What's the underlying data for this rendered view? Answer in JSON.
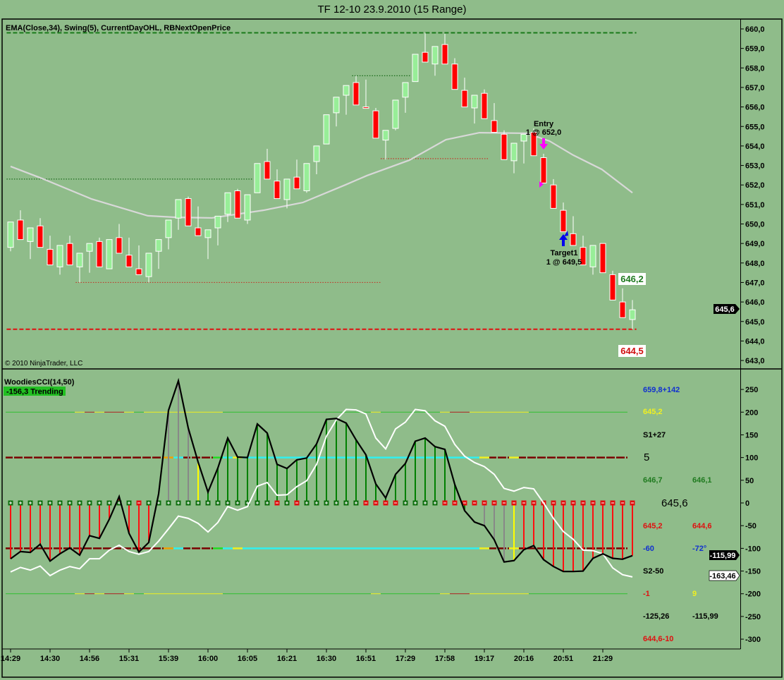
{
  "window": {
    "title": "TF 12-10  23.9.2010 (15 Range)"
  },
  "colors": {
    "background": "#8fbc8a",
    "up": "#98ee98",
    "down": "#ff0000",
    "ema": "#d8d8d8",
    "cci": "#000000",
    "tcci": "#ffffff"
  },
  "price_panel": {
    "indicator_label": "EMA(Close,34), Swing(5), CurrentDayOHL, RBNextOpenPrice",
    "copyright": "© 2010 NinjaTrader, LLC",
    "last_price_marker": "645,6",
    "next_open_up_label": "646,2",
    "next_open_down_label": "644,5",
    "entry": {
      "title": "Entry",
      "detail": "1 @ 652,0",
      "bar": 54,
      "price": 652.0
    },
    "target": {
      "title": "Target1",
      "detail": "1 @ 649,5",
      "bar": 57,
      "price": 649.5
    },
    "price_ticks": [
      "660,0",
      "659,0",
      "658,0",
      "657,0",
      "656,0",
      "655,0",
      "654,0",
      "653,0",
      "652,0",
      "651,0",
      "650,0",
      "649,0",
      "648,0",
      "647,0",
      "646,0",
      "645,0",
      "644,0",
      "643,0"
    ]
  },
  "cci_panel": {
    "title": "WoodiesCCI(14,50)",
    "status": "-156,3 Trending",
    "ticks": [
      "250",
      "200",
      "150",
      "100",
      "50",
      "0",
      "-50",
      "-100",
      "-150",
      "-200",
      "-250",
      "-300"
    ],
    "cci_marker": "-115,99",
    "tcci_marker": "-163,46",
    "info": {
      "r1": "659,8+142",
      "r2": "645,2",
      "r3": "S1+27",
      "r4": "5",
      "r5a": "646,7",
      "r5b": "646,1",
      "r6": "645,6",
      "r7a": "645,2",
      "r7b": "644,6",
      "r8a": "-60",
      "r8b": "-72°",
      "r9": "S2-50",
      "r10a": "-1",
      "r10b": "9",
      "r11a": "-125,26",
      "r11b": "-115,99",
      "r12": "644,6-10"
    }
  },
  "time_axis": [
    {
      "label": "14:29",
      "bar": 0
    },
    {
      "label": "14:30",
      "bar": 4
    },
    {
      "label": "14:56",
      "bar": 8
    },
    {
      "label": "15:31",
      "bar": 12
    },
    {
      "label": "15:39",
      "bar": 16
    },
    {
      "label": "16:00",
      "bar": 20
    },
    {
      "label": "16:05",
      "bar": 24
    },
    {
      "label": "16:21",
      "bar": 28
    },
    {
      "label": "16:30",
      "bar": 32
    },
    {
      "label": "16:51",
      "bar": 36
    },
    {
      "label": "17:29",
      "bar": 40
    },
    {
      "label": "17:58",
      "bar": 44
    },
    {
      "label": "19:17",
      "bar": 48
    },
    {
      "label": "20:16",
      "bar": 52
    },
    {
      "label": "20:51",
      "bar": 56
    },
    {
      "label": "21:29",
      "bar": 60
    }
  ],
  "chart_data": [
    {
      "type": "candlestick",
      "title": "TF 12-10 23.9.2010 (15 Range)",
      "ylim": [
        642.7,
        660.2
      ],
      "ohlc": [
        [
          648.8,
          650.1,
          648.6,
          650.1
        ],
        [
          650.2,
          650.7,
          649.2,
          649.2
        ],
        [
          649.1,
          649.8,
          648.2,
          649.8
        ],
        [
          649.9,
          650.3,
          648.8,
          648.8
        ],
        [
          648.7,
          649.4,
          647.9,
          647.9
        ],
        [
          647.8,
          648.9,
          647.4,
          648.9
        ],
        [
          649.0,
          649.4,
          647.9,
          647.9
        ],
        [
          647.8,
          648.5,
          647.0,
          648.5
        ],
        [
          648.6,
          649.0,
          647.5,
          649.0
        ],
        [
          649.1,
          649.3,
          647.8,
          647.8
        ],
        [
          647.7,
          649.2,
          647.7,
          649.2
        ],
        [
          649.3,
          650.0,
          648.5,
          648.5
        ],
        [
          648.4,
          649.3,
          647.8,
          647.8
        ],
        [
          647.7,
          648.9,
          647.4,
          647.4
        ],
        [
          647.3,
          648.5,
          647.0,
          648.5
        ],
        [
          648.6,
          649.2,
          647.7,
          649.2
        ],
        [
          649.3,
          650.2,
          648.7,
          650.2
        ],
        [
          650.3,
          651.25,
          649.7,
          651.25
        ],
        [
          651.3,
          651.4,
          649.9,
          649.9
        ],
        [
          649.8,
          650.9,
          649.4,
          649.4
        ],
        [
          649.3,
          649.7,
          648.2,
          649.7
        ],
        [
          649.8,
          650.4,
          648.9,
          650.4
        ],
        [
          650.5,
          651.6,
          650.1,
          651.6
        ],
        [
          651.7,
          651.8,
          650.3,
          650.3
        ],
        [
          650.2,
          651.5,
          650.0,
          651.5
        ],
        [
          651.6,
          653.1,
          651.6,
          653.1
        ],
        [
          653.2,
          653.85,
          652.3,
          652.3
        ],
        [
          652.2,
          652.8,
          651.3,
          651.3
        ],
        [
          651.25,
          652.3,
          650.8,
          652.3
        ],
        [
          652.4,
          653.3,
          651.8,
          651.8
        ],
        [
          651.7,
          653.1,
          651.6,
          653.1
        ],
        [
          653.2,
          654.0,
          652.55,
          654.0
        ],
        [
          654.1,
          655.6,
          654.1,
          655.6
        ],
        [
          655.7,
          656.5,
          655.0,
          656.5
        ],
        [
          656.6,
          657.1,
          655.6,
          657.1
        ],
        [
          657.25,
          657.6,
          656.1,
          656.1
        ],
        [
          656.0,
          657.4,
          655.95,
          655.95
        ],
        [
          655.8,
          655.95,
          654.4,
          654.4
        ],
        [
          654.3,
          654.8,
          653.3,
          654.8
        ],
        [
          654.9,
          656.35,
          654.8,
          656.35
        ],
        [
          656.5,
          657.25,
          655.7,
          657.25
        ],
        [
          657.3,
          658.7,
          657.3,
          658.7
        ],
        [
          658.8,
          659.8,
          658.3,
          658.3
        ],
        [
          658.2,
          659.1,
          657.6,
          659.1
        ],
        [
          659.2,
          659.75,
          658.2,
          658.2
        ],
        [
          658.2,
          658.5,
          656.9,
          656.9
        ],
        [
          656.85,
          657.5,
          656.0,
          656.0
        ],
        [
          655.95,
          656.6,
          655.15,
          656.6
        ],
        [
          656.7,
          656.9,
          655.4,
          655.4
        ],
        [
          655.3,
          656.2,
          654.7,
          654.7
        ],
        [
          654.6,
          654.8,
          653.3,
          653.3
        ],
        [
          653.24,
          654.14,
          652.6,
          654.14
        ],
        [
          654.25,
          654.6,
          653.1,
          654.6
        ],
        [
          654.7,
          654.9,
          653.5,
          653.5
        ],
        [
          653.4,
          653.6,
          652.1,
          652.1
        ],
        [
          652.0,
          652.3,
          650.8,
          650.8
        ],
        [
          650.7,
          651.1,
          649.6,
          649.6
        ],
        [
          649.5,
          650.4,
          648.9,
          648.9
        ],
        [
          648.8,
          649.4,
          647.9,
          647.9
        ],
        [
          647.8,
          648.9,
          647.4,
          648.9
        ],
        [
          649.0,
          649.0,
          647.5,
          647.5
        ],
        [
          647.4,
          647.6,
          646.1,
          646.1
        ],
        [
          646.0,
          646.7,
          645.2,
          645.2
        ],
        [
          645.1,
          646.1,
          644.6,
          645.6
        ]
      ],
      "ema34": [
        [
          0,
          652.95
        ],
        [
          3.2,
          652.33
        ],
        [
          8.2,
          651.28
        ],
        [
          13.9,
          650.42
        ],
        [
          16.8,
          650.34
        ],
        [
          20.4,
          650.31
        ],
        [
          25.6,
          650.7
        ],
        [
          29.6,
          651.1
        ],
        [
          33.9,
          652.0
        ],
        [
          36.1,
          652.48
        ],
        [
          40.4,
          653.27
        ],
        [
          44.1,
          654.32
        ],
        [
          47.5,
          654.68
        ],
        [
          52.3,
          654.65
        ],
        [
          54.6,
          654.25
        ],
        [
          57,
          653.53
        ],
        [
          59.9,
          652.8
        ],
        [
          63,
          651.6
        ]
      ],
      "levels": [
        {
          "name": "current-day-high",
          "price": 659.8,
          "from": -0.4,
          "to": 63.4,
          "color": "#1a7a1a",
          "style": "dash"
        },
        {
          "name": "current-day-low",
          "price": 644.6,
          "from": -0.4,
          "to": 63.4,
          "color": "#e01010",
          "style": "dash"
        },
        {
          "name": "swing-high",
          "price": 652.3,
          "from": -0.4,
          "to": 24.5,
          "color": "#1a6a1a",
          "style": "dot"
        },
        {
          "name": "swing-low",
          "price": 647.0,
          "from": 6.6,
          "to": 37.5,
          "color": "#c0392b",
          "style": "dot"
        },
        {
          "name": "swing-high",
          "price": 657.6,
          "from": 34.6,
          "to": 40.5,
          "color": "#1a6a1a",
          "style": "dot"
        },
        {
          "name": "swing-low",
          "price": 653.35,
          "from": 37.5,
          "to": 48.4,
          "color": "#c0392b",
          "style": "dot"
        }
      ]
    },
    {
      "type": "line",
      "title": "WoodiesCCI(14,50)",
      "ylim": [
        -320,
        275
      ],
      "series": [
        {
          "name": "CCI",
          "values": [
            -123,
            -107,
            -109,
            -91,
            -128,
            -112,
            -99,
            -115,
            -72,
            -78,
            -36,
            14,
            -67,
            -108,
            -87,
            20,
            204,
            269,
            165,
            90,
            24,
            77,
            143,
            101,
            100,
            174,
            154,
            85,
            76,
            95,
            99,
            130,
            184,
            186,
            176,
            139,
            106,
            42,
            11,
            63,
            87,
            136,
            143,
            124,
            118,
            41,
            -17,
            -42,
            -50,
            -81,
            -130,
            -127,
            -103,
            -94,
            -125,
            -140,
            -151,
            -151,
            -150,
            -122,
            -112,
            -122,
            -124,
            -116
          ]
        },
        {
          "name": "TCCI",
          "values": [
            -152,
            -142,
            -148,
            -139,
            -160,
            -148,
            -140,
            -145,
            -123,
            -123,
            -104,
            -93,
            -107,
            -113,
            -107,
            -84,
            -57,
            -29,
            -34,
            -45,
            -64,
            -43,
            -8,
            -16,
            -8,
            37,
            45,
            17,
            18,
            36,
            49,
            85,
            147,
            183,
            206,
            205,
            196,
            143,
            119,
            163,
            178,
            206,
            203,
            181,
            169,
            129,
            103,
            89,
            80,
            63,
            32,
            26,
            34,
            31,
            0,
            -34,
            -63,
            -80,
            -104,
            -105,
            -112,
            -143,
            -158,
            -163
          ]
        }
      ],
      "histogram_colors": "rrrrrrrrrrrrrrrnaaaygggggggggggggggggggggggggggnaaayrrrrrrrrrrrrr",
      "zero_markers": "+++++++++++++-+++++++++++++-+-++++++----++++--------------------",
      "line100_colors": "rrrrrrrrrrrrrrrrocrrrgcyccccccccccccccccccccccccyrryrrrrrrrrrrr",
      "line200_colors": "gggggggyryrrygyyyyyyyygggggggggggggggyggggggyrryyyyyygggggggggg"
    }
  ]
}
